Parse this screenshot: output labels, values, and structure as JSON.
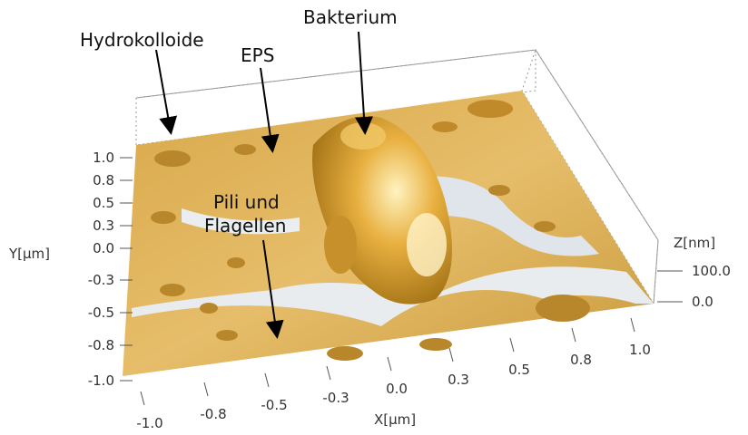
{
  "annotations": [
    "Hydrokolloide",
    "EPS",
    "Bakterium",
    "Pili und",
    "Flagellen"
  ],
  "y_axis": {
    "label": "Y[µm]",
    "ticks": [
      "1.0",
      "0.8",
      "0.5",
      "0.3",
      "0.0",
      "-0.3",
      "-0.5",
      "-0.8",
      "-1.0"
    ]
  },
  "x_axis": {
    "label": "X[µm]",
    "ticks": [
      "-1.0",
      "-0.8",
      "-0.5",
      "-0.3",
      "0.0",
      "0.3",
      "0.5",
      "0.8",
      "1.0"
    ]
  },
  "z_axis": {
    "label": "Z[nm]",
    "ticks": [
      "100.0",
      "0.0"
    ]
  }
}
